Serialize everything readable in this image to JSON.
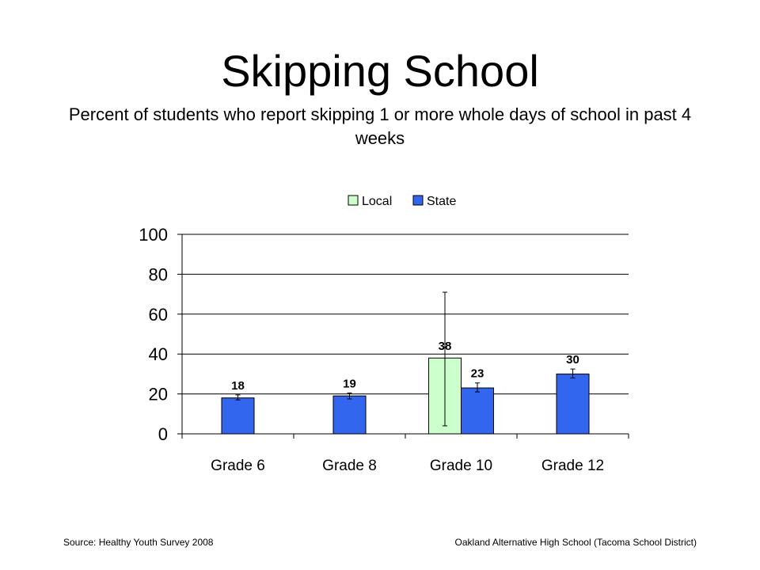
{
  "slide": {
    "title": "Skipping School",
    "subtitle": "Percent of students who report skipping 1 or more whole days of school in past 4 weeks",
    "source": "Source: Healthy Youth Survey 2008",
    "school": "Oakland Alternative High School (Tacoma School District)"
  },
  "chart_data": {
    "type": "bar",
    "categories": [
      "Grade 6",
      "Grade 8",
      "Grade 10",
      "Grade 12"
    ],
    "series": [
      {
        "name": "Local",
        "color": "#ccffcc",
        "values": [
          null,
          null,
          38,
          null
        ],
        "error_low": [
          null,
          null,
          4,
          null
        ],
        "error_high": [
          null,
          null,
          71,
          null
        ],
        "labels": [
          "",
          "",
          "38",
          ""
        ]
      },
      {
        "name": "State",
        "color": "#3366ee",
        "values": [
          18,
          19,
          23,
          30
        ],
        "error_low": [
          17,
          17.5,
          21,
          28
        ],
        "error_high": [
          19.5,
          20.5,
          25.5,
          32.5
        ],
        "labels": [
          "18",
          "19",
          "23",
          "30"
        ]
      }
    ],
    "ylim": [
      0,
      100
    ],
    "yticks": [
      "0",
      "20",
      "40",
      "60",
      "80",
      "100"
    ],
    "grid": true,
    "legend": "top"
  }
}
